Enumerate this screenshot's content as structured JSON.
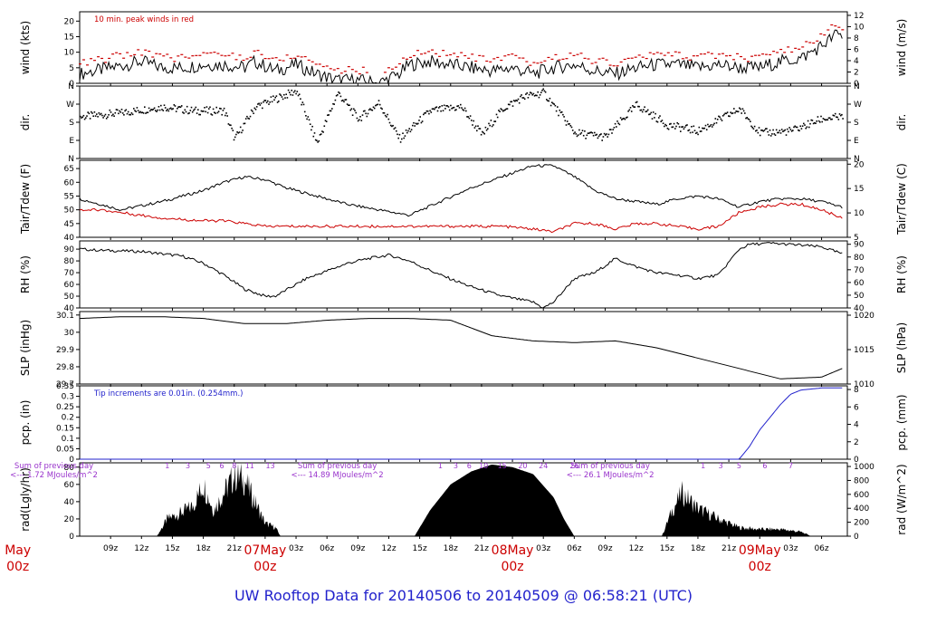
{
  "title": "UW Rooftop Data for 20140506  to  20140509 @ 06:58:21  (UTC)",
  "colors": {
    "text": "#000000",
    "red": "#cc0000",
    "blue": "#2222cc",
    "purple": "#9933cc",
    "axis": "#000000"
  },
  "x_ticks": [
    "09z",
    "12z",
    "15z",
    "18z",
    "21z",
    "03z",
    "06z",
    "09z",
    "12z",
    "15z",
    "18z",
    "21z",
    "03z",
    "06z",
    "09z",
    "12z",
    "15z",
    "18z",
    "21z",
    "03z",
    "06z"
  ],
  "day_labels": [
    {
      "top": "May",
      "bottom": "00z",
      "hour": 0
    },
    {
      "top": "07May",
      "bottom": "00z",
      "hour": 24
    },
    {
      "top": "08May",
      "bottom": "00z",
      "hour": 48
    },
    {
      "top": "09May",
      "bottom": "00z",
      "hour": 72
    }
  ],
  "chart_data": [
    {
      "type": "line",
      "name": "wind",
      "ylabel_left": "wind (kts)",
      "ylabel_right": "wind (m/s)",
      "ylim": [
        0,
        23
      ],
      "yticks": [
        0,
        5,
        10,
        15,
        20
      ],
      "yticks_right": [
        0,
        2,
        4,
        6,
        8,
        10,
        12
      ],
      "annotation": "10 min. peak winds in red",
      "series": [
        {
          "name": "wind",
          "x": [
            6,
            9,
            12,
            14,
            16,
            18,
            20,
            22,
            23,
            25,
            27,
            29,
            31,
            33,
            35,
            37,
            38,
            40,
            42,
            44,
            46,
            48,
            50,
            52,
            54,
            56,
            58,
            60,
            62,
            64,
            66,
            68,
            70,
            72,
            74,
            76,
            78,
            79.5,
            80
          ],
          "values": [
            3,
            5,
            7,
            5,
            5,
            6,
            6,
            5,
            7,
            4,
            6,
            3,
            1,
            1,
            0,
            3,
            6,
            7,
            6,
            5,
            4,
            5,
            3,
            5,
            6,
            4,
            3,
            5,
            6,
            6,
            5,
            6,
            5,
            5,
            7,
            8,
            12,
            16,
            15
          ]
        }
      ]
    },
    {
      "type": "scatter",
      "name": "dir",
      "ylabel_left": "dir.",
      "ylabel_right": "dir.",
      "yticks": [
        "N",
        "E",
        "S",
        "W",
        "N"
      ],
      "yticks_right": [
        "N",
        "E",
        "S",
        "W",
        "N"
      ],
      "series": [
        {
          "name": "direction",
          "x": [
            6,
            10,
            14,
            17,
            20,
            21,
            23,
            25,
            27,
            29,
            31,
            33,
            35,
            37,
            40,
            43,
            45,
            47,
            49,
            51,
            54,
            57,
            60,
            63,
            66,
            70,
            72,
            75,
            78,
            80
          ],
          "values": [
            210,
            230,
            260,
            240,
            240,
            100,
            260,
            300,
            340,
            80,
            330,
            200,
            280,
            100,
            240,
            260,
            120,
            250,
            310,
            330,
            130,
            110,
            270,
            170,
            140,
            250,
            130,
            140,
            200,
            210
          ]
        }
      ]
    },
    {
      "type": "line",
      "name": "temp",
      "ylabel_left": "Tair/Tdew (F)",
      "ylabel_right": "Tair/Tdew (C)",
      "ylim": [
        40,
        68
      ],
      "yticks": [
        40,
        45,
        50,
        55,
        60,
        65
      ],
      "yticks_right": [
        5,
        10,
        15,
        20
      ],
      "series": [
        {
          "name": "Tair",
          "x": [
            6,
            8,
            10,
            14,
            18,
            20,
            22,
            24,
            26,
            29,
            32,
            35,
            38,
            41,
            44,
            47,
            50,
            52,
            54,
            56,
            58,
            60,
            62,
            64,
            66,
            68,
            70,
            72,
            74,
            76,
            78,
            80
          ],
          "values": [
            54,
            52,
            50,
            53,
            57,
            60,
            62,
            61,
            58,
            55,
            52,
            50,
            48,
            53,
            58,
            62,
            66,
            66,
            62,
            57,
            54,
            53,
            52,
            54,
            55,
            54,
            51,
            53,
            54,
            54,
            53,
            51
          ]
        },
        {
          "name": "Tdew",
          "x": [
            6,
            8,
            10,
            14,
            18,
            20,
            22,
            24,
            26,
            29,
            32,
            35,
            38,
            41,
            44,
            47,
            50,
            52,
            54,
            56,
            58,
            60,
            62,
            64,
            66,
            68,
            70,
            72,
            74,
            76,
            78,
            80
          ],
          "values": [
            50,
            50,
            49,
            47,
            46,
            46,
            45,
            44,
            44,
            44,
            44,
            44,
            44,
            44,
            44,
            44,
            43,
            42,
            45,
            45,
            43,
            45,
            45,
            44,
            43,
            44,
            49,
            51,
            52,
            52,
            50,
            47
          ]
        }
      ]
    },
    {
      "type": "line",
      "name": "rh",
      "ylabel_left": "RH (%)",
      "ylabel_right": "RH (%)",
      "ylim": [
        40,
        97
      ],
      "yticks": [
        40,
        50,
        60,
        70,
        80,
        90
      ],
      "yticks_right": [
        40,
        50,
        60,
        70,
        80,
        90
      ],
      "series": [
        {
          "name": "RH",
          "x": [
            6,
            8,
            12,
            16,
            18,
            20,
            22,
            24,
            25,
            28,
            32,
            34,
            36,
            38,
            41,
            44,
            47,
            50,
            51,
            52,
            54,
            56,
            58,
            60,
            62,
            64,
            66,
            68,
            70,
            71,
            73,
            75,
            78,
            80
          ],
          "values": [
            90,
            89,
            88,
            84,
            78,
            68,
            56,
            50,
            50,
            65,
            78,
            82,
            85,
            80,
            68,
            58,
            50,
            45,
            40,
            45,
            65,
            70,
            82,
            75,
            70,
            68,
            65,
            68,
            90,
            94,
            95,
            94,
            92,
            86
          ]
        }
      ]
    },
    {
      "type": "line",
      "name": "slp",
      "ylabel_left": "SLP (inHg)",
      "ylabel_right": "SLP (hPa)",
      "ylim": [
        29.7,
        30.12
      ],
      "yticks": [
        29.7,
        29.8,
        29.9,
        30.0,
        30.1
      ],
      "yticks_right": [
        1010,
        1015,
        1020
      ],
      "series": [
        {
          "name": "SLP",
          "x": [
            6,
            10,
            14,
            18,
            22,
            26,
            30,
            34,
            38,
            42,
            46,
            50,
            54,
            58,
            62,
            66,
            70,
            74,
            78,
            80
          ],
          "values": [
            30.08,
            30.09,
            30.09,
            30.08,
            30.05,
            30.05,
            30.07,
            30.08,
            30.08,
            30.07,
            29.98,
            29.95,
            29.94,
            29.95,
            29.91,
            29.85,
            29.79,
            29.73,
            29.74,
            29.79
          ]
        }
      ]
    },
    {
      "type": "line",
      "name": "pcp",
      "ylabel_left": "pcp. (in)",
      "ylabel_right": "pcp. (mm)",
      "ylim": [
        0,
        0.35
      ],
      "yticks": [
        0,
        0.05,
        0.1,
        0.15,
        0.2,
        0.25,
        0.3,
        0.35
      ],
      "yticks_right": [
        0,
        2,
        4,
        6,
        8
      ],
      "annotation": "Tip increments are 0.01in. (0.254mm.)",
      "series": [
        {
          "name": "precip",
          "x": [
            6,
            70,
            71,
            72,
            73,
            74,
            75,
            76,
            78,
            80
          ],
          "values": [
            0,
            0,
            0.06,
            0.14,
            0.2,
            0.26,
            0.31,
            0.33,
            0.34,
            0.34
          ]
        }
      ]
    },
    {
      "type": "area",
      "name": "rad",
      "ylabel_left": "rad(Lgly/hr)",
      "ylabel_right": "rad (W/m^2)",
      "ylim": [
        0,
        85
      ],
      "yticks": [
        0,
        20,
        40,
        60,
        80
      ],
      "yticks_right": [
        0,
        200,
        400,
        600,
        800,
        1000
      ],
      "series": [
        {
          "name": "radiation",
          "x": [
            13.5,
            14.5,
            16,
            17,
            18,
            19,
            20,
            21,
            22,
            23,
            24,
            25,
            25.5,
            38.5,
            40,
            42,
            44,
            46,
            48,
            50,
            52,
            53,
            54,
            62.5,
            63.5,
            64.5,
            66,
            68,
            70,
            72,
            74,
            76,
            77
          ],
          "values": [
            0,
            20,
            28,
            35,
            60,
            30,
            50,
            70,
            65,
            40,
            15,
            10,
            0,
            0,
            30,
            60,
            75,
            83,
            80,
            72,
            45,
            20,
            0,
            0,
            30,
            50,
            32,
            20,
            10,
            8,
            8,
            5,
            0
          ]
        }
      ],
      "annotations": [
        {
          "text": "Sum of previous day",
          "hour": 3.5,
          "row": 0
        },
        {
          "text": "<--- 1.72 MJoules/m^2",
          "hour": 3.5,
          "row": 1
        },
        {
          "text": "Sum of previous day",
          "hour": 31.0,
          "row": 0
        },
        {
          "text": "<--- 14.89 MJoules/m^2",
          "hour": 31.0,
          "row": 1
        },
        {
          "text": "Sum of previous day",
          "hour": 57.5,
          "row": 0
        },
        {
          "text": "<--- 26.1 MJoules/m^2",
          "hour": 57.5,
          "row": 1
        }
      ],
      "hour_marks": [
        {
          "text": "1",
          "hour": 14.5
        },
        {
          "text": "3",
          "hour": 16.5
        },
        {
          "text": "5",
          "hour": 18.5
        },
        {
          "text": "6",
          "hour": 19.8
        },
        {
          "text": "8",
          "hour": 21.0
        },
        {
          "text": "11",
          "hour": 22.5
        },
        {
          "text": "13",
          "hour": 24.5
        },
        {
          "text": "1",
          "hour": 41.0
        },
        {
          "text": "3",
          "hour": 42.5
        },
        {
          "text": "6",
          "hour": 43.8
        },
        {
          "text": "10",
          "hour": 45.2
        },
        {
          "text": "15",
          "hour": 47.0
        },
        {
          "text": "20",
          "hour": 49.0
        },
        {
          "text": "24",
          "hour": 51.0
        },
        {
          "text": "26",
          "hour": 54.0
        },
        {
          "text": "1",
          "hour": 66.5
        },
        {
          "text": "3",
          "hour": 68.2
        },
        {
          "text": "5",
          "hour": 70.0
        },
        {
          "text": "6",
          "hour": 72.5
        },
        {
          "text": "7",
          "hour": 75.0
        }
      ]
    }
  ]
}
